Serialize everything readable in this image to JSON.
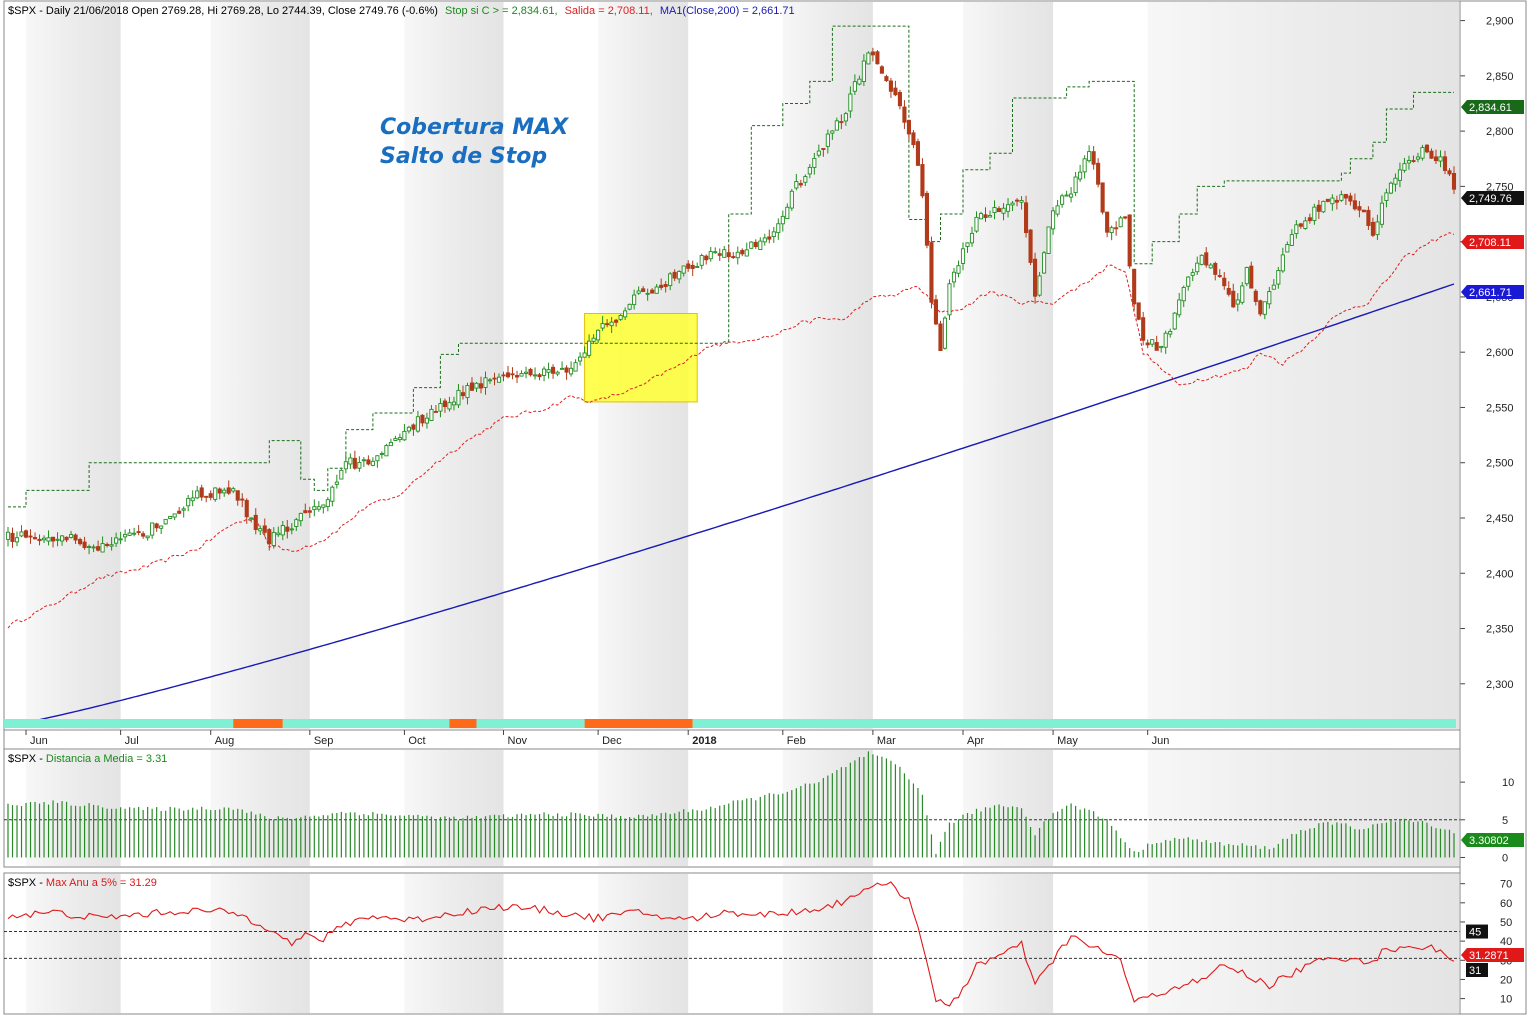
{
  "header": {
    "symbol": "$SPX",
    "sep": " - ",
    "main_info": "Daily 21/06/2018 Open 2769.28, Hi 2769.28, Lo 2744.39, Close 2749.76 (-0.6%)",
    "stop_label": "Stop si C > = 2,834.61,",
    "exit_label": "Salida = 2,708.11,",
    "ma_label": "MA1(Close,200) = 2,661.71"
  },
  "annotation": {
    "line1": "Cobertura MAX",
    "line2": "Salto de Stop"
  },
  "months": [
    "Jun",
    "Jul",
    "Aug",
    "Sep",
    "Oct",
    "Nov",
    "Dec",
    "2018",
    "Feb",
    "Mar",
    "Apr",
    "May",
    "Jun"
  ],
  "colors": {
    "up": "#1f8f1f",
    "down": "#b03a1a",
    "stop": "#1a6e1a",
    "exit": "#e02020",
    "ma": "#1a1ab4",
    "dist": "#2a8a2a",
    "maxanu": "#e01818",
    "band_on": "#7ff0d4",
    "band_off": "#ff6a1a",
    "highlight": "#ffff33",
    "annotation": "#1a6ec0",
    "stripe": "#efefef"
  },
  "chart_data": [
    {
      "type": "candlestick",
      "title": "$SPX - Daily 21/06/2018",
      "ylim": [
        2260,
        2915
      ],
      "yticks": [
        2300,
        2350,
        2400,
        2450,
        2500,
        2550,
        2600,
        2650,
        2700,
        2750,
        2800,
        2850,
        2900
      ],
      "ytick_labels": [
        "2,300",
        "2,350",
        "2,400",
        "2,450",
        "2,500",
        "2,550",
        "2,600",
        "2,650",
        "2,700",
        "2,750",
        "2,800",
        "2,850",
        "2,900"
      ],
      "last_values": {
        "stop": "2,834.61",
        "close": "2,749.76",
        "exit": "2,708.11",
        "ma": "2,661.71"
      },
      "close_keypoints": [
        [
          0,
          2433
        ],
        [
          10,
          2433
        ],
        [
          21,
          2425
        ],
        [
          30,
          2435
        ],
        [
          42,
          2470
        ],
        [
          50,
          2475
        ],
        [
          55,
          2442
        ],
        [
          58,
          2430
        ],
        [
          63,
          2445
        ],
        [
          70,
          2460
        ],
        [
          75,
          2500
        ],
        [
          80,
          2500
        ],
        [
          86,
          2523
        ],
        [
          95,
          2548
        ],
        [
          102,
          2568
        ],
        [
          110,
          2580
        ],
        [
          120,
          2582
        ],
        [
          125,
          2585
        ],
        [
          130,
          2617
        ],
        [
          135,
          2632
        ],
        [
          140,
          2652
        ],
        [
          145,
          2660
        ],
        [
          150,
          2675
        ],
        [
          155,
          2687
        ],
        [
          162,
          2690
        ],
        [
          170,
          2705
        ],
        [
          175,
          2750
        ],
        [
          180,
          2780
        ],
        [
          186,
          2820
        ],
        [
          191,
          2873
        ],
        [
          194,
          2850
        ],
        [
          198,
          2823
        ],
        [
          201,
          2790
        ],
        [
          203,
          2740
        ],
        [
          205,
          2650
        ],
        [
          207,
          2600
        ],
        [
          209,
          2660
        ],
        [
          212,
          2690
        ],
        [
          215,
          2720
        ],
        [
          220,
          2728
        ],
        [
          225,
          2738
        ],
        [
          228,
          2655
        ],
        [
          232,
          2730
        ],
        [
          236,
          2744
        ],
        [
          240,
          2786
        ],
        [
          244,
          2712
        ],
        [
          248,
          2718
        ],
        [
          250,
          2645
        ],
        [
          252,
          2610
        ],
        [
          255,
          2605
        ],
        [
          258,
          2620
        ],
        [
          261,
          2660
        ],
        [
          265,
          2685
        ],
        [
          270,
          2665
        ],
        [
          272,
          2640
        ],
        [
          275,
          2672
        ],
        [
          278,
          2632
        ],
        [
          281,
          2660
        ],
        [
          285,
          2706
        ],
        [
          290,
          2728
        ],
        [
          295,
          2740
        ],
        [
          300,
          2730
        ],
        [
          303,
          2710
        ],
        [
          306,
          2748
        ],
        [
          310,
          2773
        ],
        [
          314,
          2783
        ],
        [
          318,
          2775
        ],
        [
          321,
          2750
        ]
      ],
      "stop_steps": [
        [
          0,
          2460
        ],
        [
          4,
          2475
        ],
        [
          18,
          2500
        ],
        [
          58,
          2520
        ],
        [
          65,
          2485
        ],
        [
          68,
          2475
        ],
        [
          71,
          2495
        ],
        [
          75,
          2530
        ],
        [
          81,
          2545
        ],
        [
          90,
          2568
        ],
        [
          96,
          2598
        ],
        [
          100,
          2608
        ],
        [
          157,
          2608
        ],
        [
          160,
          2725
        ],
        [
          165,
          2805
        ],
        [
          172,
          2825
        ],
        [
          178,
          2845
        ],
        [
          183,
          2895
        ],
        [
          195,
          2895
        ],
        [
          200,
          2720
        ],
        [
          204,
          2700
        ],
        [
          207,
          2725
        ],
        [
          212,
          2765
        ],
        [
          218,
          2780
        ],
        [
          223,
          2830
        ],
        [
          235,
          2840
        ],
        [
          240,
          2845
        ],
        [
          247,
          2845
        ],
        [
          250,
          2680
        ],
        [
          254,
          2700
        ],
        [
          260,
          2725
        ],
        [
          264,
          2750
        ],
        [
          270,
          2755
        ],
        [
          290,
          2755
        ],
        [
          296,
          2762
        ],
        [
          298,
          2775
        ],
        [
          303,
          2790
        ],
        [
          306,
          2820
        ],
        [
          312,
          2835
        ],
        [
          321,
          2835
        ]
      ],
      "exit_keypoints": [
        [
          0,
          2352
        ],
        [
          10,
          2372
        ],
        [
          20,
          2395
        ],
        [
          30,
          2405
        ],
        [
          42,
          2422
        ],
        [
          50,
          2445
        ],
        [
          55,
          2450
        ],
        [
          58,
          2425
        ],
        [
          63,
          2420
        ],
        [
          70,
          2430
        ],
        [
          75,
          2445
        ],
        [
          80,
          2462
        ],
        [
          86,
          2468
        ],
        [
          95,
          2500
        ],
        [
          102,
          2520
        ],
        [
          110,
          2540
        ],
        [
          120,
          2550
        ],
        [
          125,
          2560
        ],
        [
          130,
          2555
        ],
        [
          140,
          2568
        ],
        [
          145,
          2580
        ],
        [
          150,
          2590
        ],
        [
          155,
          2605
        ],
        [
          162,
          2610
        ],
        [
          170,
          2615
        ],
        [
          175,
          2625
        ],
        [
          180,
          2630
        ],
        [
          186,
          2630
        ],
        [
          191,
          2648
        ],
        [
          197,
          2652
        ],
        [
          202,
          2660
        ],
        [
          207,
          2635
        ],
        [
          212,
          2640
        ],
        [
          218,
          2655
        ],
        [
          225,
          2645
        ],
        [
          232,
          2645
        ],
        [
          240,
          2665
        ],
        [
          245,
          2680
        ],
        [
          248,
          2673
        ],
        [
          252,
          2600
        ],
        [
          256,
          2585
        ],
        [
          260,
          2570
        ],
        [
          264,
          2575
        ],
        [
          270,
          2580
        ],
        [
          275,
          2585
        ],
        [
          278,
          2600
        ],
        [
          283,
          2590
        ],
        [
          288,
          2605
        ],
        [
          294,
          2630
        ],
        [
          298,
          2640
        ],
        [
          302,
          2645
        ],
        [
          306,
          2665
        ],
        [
          310,
          2685
        ],
        [
          314,
          2695
        ],
        [
          318,
          2705
        ],
        [
          321,
          2708
        ]
      ],
      "ma_range": [
        2262,
        2661.71
      ],
      "sessions": 322,
      "highlight": {
        "x_session": [
          128,
          153
        ],
        "y": [
          2555,
          2635
        ]
      },
      "signal_band": [
        {
          "from": 0,
          "to": 50,
          "state": "on"
        },
        {
          "from": 50,
          "to": 61,
          "state": "off"
        },
        {
          "from": 61,
          "to": 98,
          "state": "on"
        },
        {
          "from": 98,
          "to": 104,
          "state": "off"
        },
        {
          "from": 104,
          "to": 128,
          "state": "on"
        },
        {
          "from": 128,
          "to": 152,
          "state": "off"
        },
        {
          "from": 152,
          "to": 322,
          "state": "on"
        }
      ]
    },
    {
      "type": "bar",
      "title": "$SPX - Distancia a Media = 3.31",
      "series_label": "Distancia a Media = 3.31",
      "ylim": [
        -1,
        14
      ],
      "yticks": [
        0,
        5,
        10
      ],
      "ytick_labels": [
        "0",
        "5",
        "10"
      ],
      "reference_line": 5,
      "last_value": "3.30802",
      "value_keypoints": [
        [
          0,
          7
        ],
        [
          10,
          7.3
        ],
        [
          30,
          6.4
        ],
        [
          50,
          6.6
        ],
        [
          58,
          5.2
        ],
        [
          64,
          5.3
        ],
        [
          75,
          6
        ],
        [
          100,
          5.2
        ],
        [
          120,
          5.8
        ],
        [
          140,
          5.4
        ],
        [
          155,
          6.5
        ],
        [
          170,
          8.4
        ],
        [
          180,
          10
        ],
        [
          185,
          11.8
        ],
        [
          191,
          13.8
        ],
        [
          197,
          12.4
        ],
        [
          203,
          8.5
        ],
        [
          206,
          0.5
        ],
        [
          209,
          4.6
        ],
        [
          215,
          6.2
        ],
        [
          220,
          7
        ],
        [
          225,
          6.6
        ],
        [
          228,
          3.2
        ],
        [
          232,
          6
        ],
        [
          236,
          7
        ],
        [
          240,
          6.2
        ],
        [
          244,
          5
        ],
        [
          250,
          0.6
        ],
        [
          255,
          2.2
        ],
        [
          260,
          2.5
        ],
        [
          265,
          2.3
        ],
        [
          270,
          1.7
        ],
        [
          275,
          1.6
        ],
        [
          280,
          1.2
        ],
        [
          285,
          3
        ],
        [
          290,
          4.2
        ],
        [
          295,
          4.6
        ],
        [
          300,
          3.8
        ],
        [
          305,
          4.6
        ],
        [
          310,
          5
        ],
        [
          316,
          4.4
        ],
        [
          321,
          3.3
        ]
      ]
    },
    {
      "type": "line",
      "title": "$SPX - Max Anu a 5% = 31.29",
      "series_label": "Max Anu a 5% = 31.29",
      "ylim": [
        3,
        74
      ],
      "yticks": [
        10,
        20,
        30,
        40,
        50,
        60,
        70
      ],
      "ytick_labels": [
        "10",
        "20",
        "30",
        "40",
        "50",
        "60",
        "70"
      ],
      "reference_lines": [
        45,
        31
      ],
      "ref_labels": [
        "45",
        "31"
      ],
      "last_value": "31.2871",
      "value_keypoints": [
        [
          0,
          53
        ],
        [
          10,
          55
        ],
        [
          20,
          52
        ],
        [
          30,
          54
        ],
        [
          40,
          56
        ],
        [
          50,
          55
        ],
        [
          55,
          50
        ],
        [
          60,
          45
        ],
        [
          63,
          38
        ],
        [
          66,
          43
        ],
        [
          70,
          41
        ],
        [
          75,
          49
        ],
        [
          80,
          53
        ],
        [
          90,
          51
        ],
        [
          100,
          55
        ],
        [
          110,
          58
        ],
        [
          120,
          56
        ],
        [
          130,
          52
        ],
        [
          140,
          55
        ],
        [
          150,
          51
        ],
        [
          160,
          55
        ],
        [
          170,
          54
        ],
        [
          180,
          57
        ],
        [
          186,
          61
        ],
        [
          190,
          68
        ],
        [
          196,
          69
        ],
        [
          200,
          62
        ],
        [
          203,
          40
        ],
        [
          206,
          9
        ],
        [
          209,
          5
        ],
        [
          212,
          15
        ],
        [
          215,
          28
        ],
        [
          220,
          32
        ],
        [
          225,
          38
        ],
        [
          228,
          17
        ],
        [
          232,
          30
        ],
        [
          236,
          43
        ],
        [
          240,
          37
        ],
        [
          244,
          34
        ],
        [
          247,
          30
        ],
        [
          250,
          8
        ],
        [
          255,
          12
        ],
        [
          260,
          17
        ],
        [
          265,
          19
        ],
        [
          270,
          28
        ],
        [
          275,
          22
        ],
        [
          280,
          17
        ],
        [
          285,
          23
        ],
        [
          290,
          29
        ],
        [
          295,
          31
        ],
        [
          300,
          32
        ],
        [
          302,
          27
        ],
        [
          305,
          34
        ],
        [
          310,
          38
        ],
        [
          316,
          36
        ],
        [
          321,
          31
        ]
      ]
    }
  ]
}
